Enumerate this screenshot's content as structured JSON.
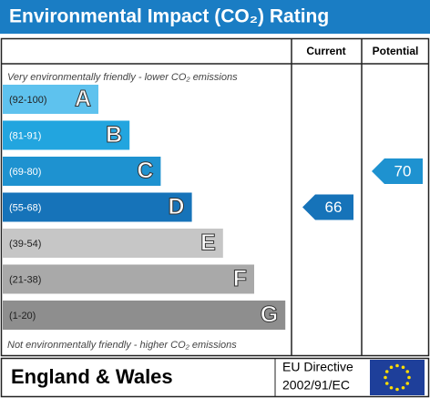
{
  "chart_data": {
    "type": "rating",
    "title": "Environmental Impact (CO₂) Rating",
    "columns": [
      "Current",
      "Potential"
    ],
    "top_note": "Very environmentally friendly - lower CO₂ emissions",
    "bottom_note": "Not environmentally friendly - higher CO₂ emissions",
    "bands": [
      {
        "letter": "A",
        "range": "(92-100)",
        "color": "#5ec2ee"
      },
      {
        "letter": "B",
        "range": "(81-91)",
        "color": "#22a5df"
      },
      {
        "letter": "C",
        "range": "(69-80)",
        "color": "#1e92d0"
      },
      {
        "letter": "D",
        "range": "(55-68)",
        "color": "#1673b9"
      },
      {
        "letter": "E",
        "range": "(39-54)",
        "color": "#c6c6c6"
      },
      {
        "letter": "F",
        "range": "(21-38)",
        "color": "#a9a9a9"
      },
      {
        "letter": "G",
        "range": "(1-20)",
        "color": "#8e8e8e"
      }
    ],
    "current": 66,
    "potential": 70,
    "footer": {
      "region": "England & Wales",
      "directive": "EU Directive",
      "directive_code": "2002/91/EC"
    }
  }
}
